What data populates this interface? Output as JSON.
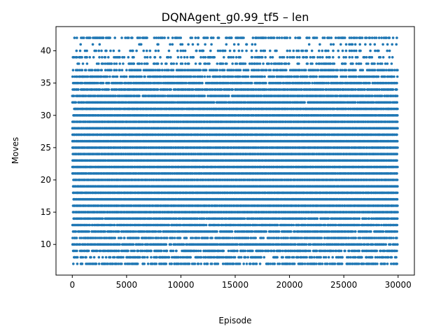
{
  "chart_data": {
    "type": "scatter",
    "title": "DQNAgent_g0.99_tf5 – len",
    "xlabel": "Episode",
    "ylabel": "Moves",
    "xlim": [
      -1500,
      31500
    ],
    "ylim": [
      5.25,
      43.75
    ],
    "x_ticks": [
      0,
      5000,
      10000,
      15000,
      20000,
      25000,
      30000
    ],
    "y_ticks": [
      10,
      15,
      20,
      25,
      30,
      35,
      40
    ],
    "grid": false,
    "legend": "none",
    "color": "#1f77b4",
    "series": [
      {
        "episode_range": [
          0,
          30000
        ],
        "rows": [
          {
            "y": 7,
            "density": 0.62
          },
          {
            "y": 8,
            "density": 0.55
          },
          {
            "y": 9,
            "density": 0.72
          },
          {
            "y": 10,
            "density": 0.8
          },
          {
            "y": 11,
            "density": 0.75
          },
          {
            "y": 12,
            "density": 0.85
          },
          {
            "y": 13,
            "density": 0.9
          },
          {
            "y": 14,
            "density": 0.9
          },
          {
            "y": 15,
            "density": 1.0
          },
          {
            "y": 16,
            "density": 1.0
          },
          {
            "y": 17,
            "density": 1.0
          },
          {
            "y": 18,
            "density": 1.0
          },
          {
            "y": 19,
            "density": 1.0
          },
          {
            "y": 20,
            "density": 1.0
          },
          {
            "y": 21,
            "density": 1.0
          },
          {
            "y": 22,
            "density": 1.0
          },
          {
            "y": 23,
            "density": 1.0
          },
          {
            "y": 24,
            "density": 1.0
          },
          {
            "y": 25,
            "density": 1.0
          },
          {
            "y": 26,
            "density": 1.0
          },
          {
            "y": 27,
            "density": 1.0
          },
          {
            "y": 28,
            "density": 1.0
          },
          {
            "y": 29,
            "density": 1.0
          },
          {
            "y": 30,
            "density": 1.0
          },
          {
            "y": 31,
            "density": 0.95
          },
          {
            "y": 32,
            "density": 0.95
          },
          {
            "y": 33,
            "density": 0.9
          },
          {
            "y": 34,
            "density": 0.88
          },
          {
            "y": 35,
            "density": 0.82
          },
          {
            "y": 36,
            "density": 0.75
          },
          {
            "y": 37,
            "density": 0.62
          },
          {
            "y": 38,
            "density": 0.38
          },
          {
            "y": 39,
            "density": 0.3
          },
          {
            "y": 40,
            "density": 0.22
          },
          {
            "y": 41,
            "density": 0.14
          },
          {
            "y": 42,
            "density": 0.45
          }
        ]
      }
    ]
  }
}
